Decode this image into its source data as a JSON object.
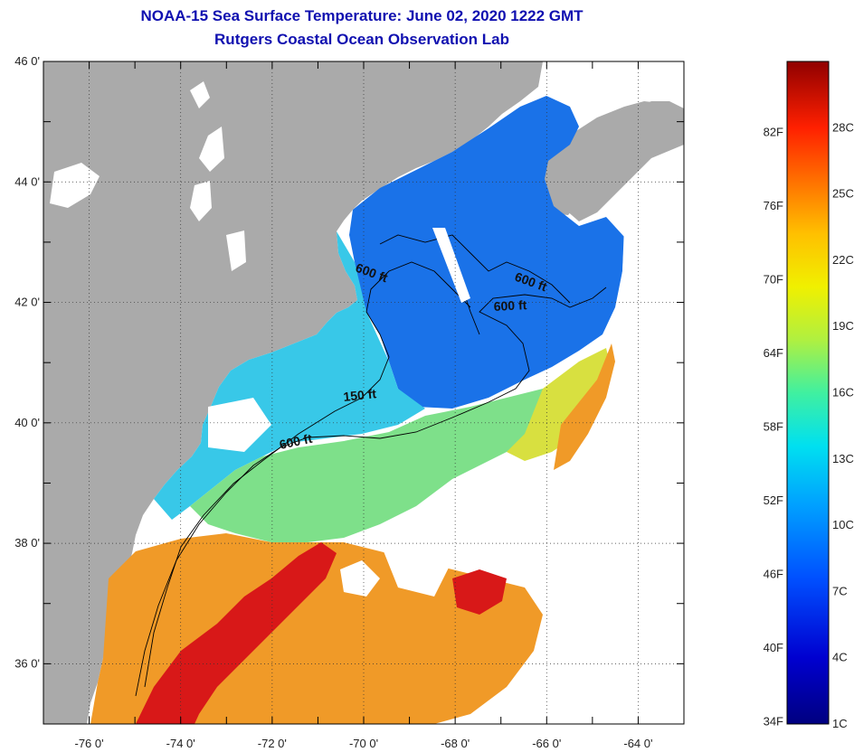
{
  "title": {
    "line1": "NOAA-15 Sea Surface Temperature:  June 02, 2020 1222 GMT",
    "line2": "Rutgers Coastal Ocean Observation Lab"
  },
  "map": {
    "lat_labels": [
      "46 0'",
      "44 0'",
      "42 0'",
      "40 0'",
      "38 0'",
      "36 0'"
    ],
    "lon_labels": [
      "-76 0'",
      "-74 0'",
      "-72 0'",
      "-70 0'",
      "-68 0'",
      "-66 0'",
      "-64 0'"
    ],
    "lat_range": [
      35,
      46
    ],
    "lon_range": [
      -77,
      -63
    ],
    "grid": true,
    "contour_labels": [
      "600 ft",
      "600 ft",
      "600 ft",
      "150 ft",
      "600 ft"
    ],
    "colors": {
      "land": "#aaaaaa",
      "no_data": "#ffffff",
      "cold": "#1060e0",
      "cool": "#20c0e0",
      "mid": "#70e070",
      "warm": "#f09020",
      "hot": "#d01010"
    }
  },
  "colorbar": {
    "fahrenheit_labels": [
      "82F",
      "76F",
      "70F",
      "64F",
      "58F",
      "52F",
      "46F",
      "40F",
      "34F"
    ],
    "celsius_labels": [
      "28C",
      "25C",
      "22C",
      "19C",
      "16C",
      "13C",
      "10C",
      "7C",
      "4C",
      "1C"
    ],
    "range_c": [
      1,
      31
    ]
  }
}
